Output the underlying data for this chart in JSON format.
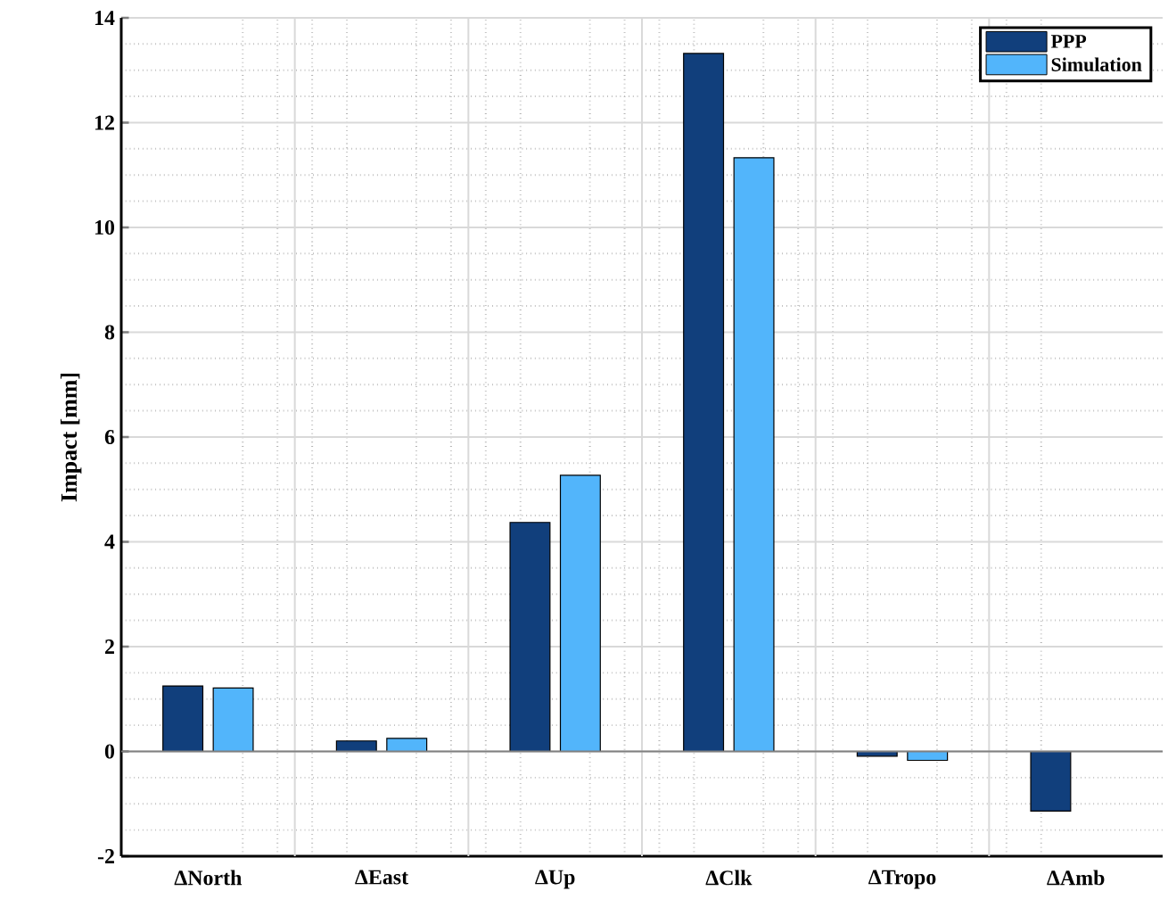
{
  "chart_data": {
    "type": "bar",
    "ylabel": "Impact [mm]",
    "categories": [
      "ΔNorth",
      "ΔEast",
      "ΔUp",
      "ΔClk",
      "ΔTropo",
      "ΔAmb"
    ],
    "series": [
      {
        "name": "PPP",
        "color": "#113f7c",
        "values": [
          1.25,
          0.2,
          4.37,
          13.32,
          -0.09,
          -1.14
        ]
      },
      {
        "name": "Simulation",
        "color": "#52b5fb",
        "values": [
          1.21,
          0.25,
          5.27,
          11.33,
          -0.17,
          null
        ]
      }
    ],
    "ylim": [
      -2,
      14
    ],
    "yticks": [
      -2,
      0,
      2,
      4,
      6,
      8,
      10,
      12,
      14
    ],
    "grid": true,
    "legend": "top right"
  }
}
